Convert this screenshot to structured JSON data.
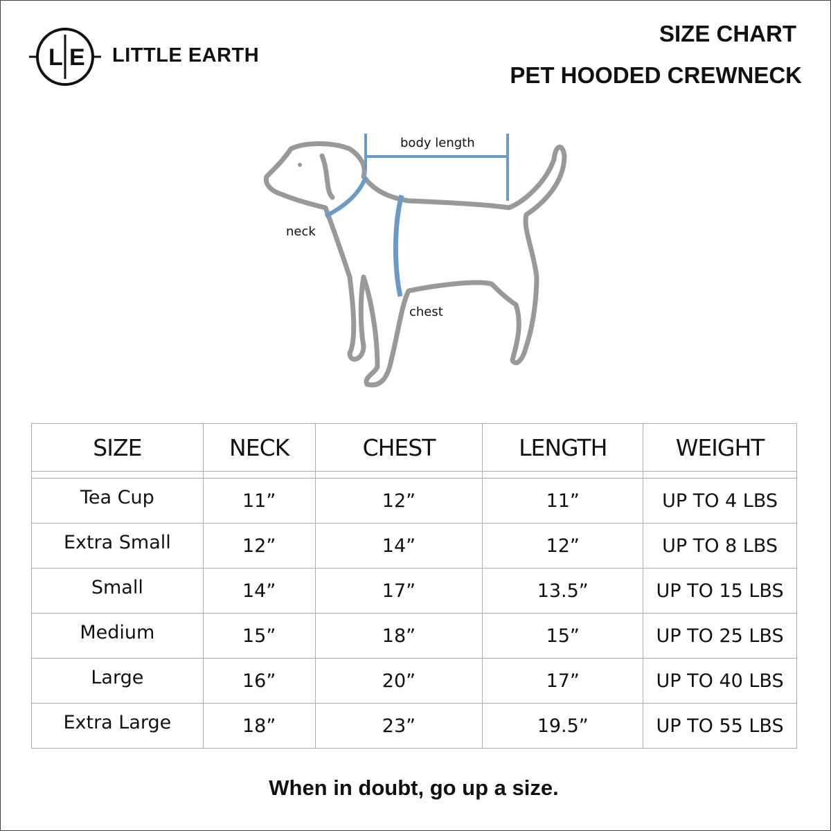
{
  "brand": {
    "logo_letters": "L|E",
    "name": "LITTLE EARTH"
  },
  "header": {
    "title": "SIZE CHART",
    "subtitle": "PET HOODED CREWNECK"
  },
  "diagram": {
    "labels": {
      "body_length": "body length",
      "neck": "neck",
      "chest": "chest"
    },
    "outline_color": "#999999",
    "measure_color": "#6b9ac4"
  },
  "table": {
    "columns": [
      "SIZE",
      "NECK",
      "CHEST",
      "LENGTH",
      "WEIGHT"
    ],
    "rows": [
      [
        "Tea Cup",
        "11”",
        "12”",
        "11”",
        "UP TO 4 LBS"
      ],
      [
        "Extra Small",
        "12”",
        "14”",
        "12”",
        "UP TO 8 LBS"
      ],
      [
        "Small",
        "14”",
        "17”",
        "13.5”",
        "UP TO  15 LBS"
      ],
      [
        "Medium",
        "15”",
        "18”",
        "15”",
        "UP TO 25 LBS"
      ],
      [
        "Large",
        "16”",
        "20”",
        "17”",
        "UP TO 40 LBS"
      ],
      [
        "Extra Large",
        "18”",
        "23”",
        "19.5”",
        "UP TO 55 LBS"
      ]
    ]
  },
  "footer": "When in doubt, go up a size."
}
